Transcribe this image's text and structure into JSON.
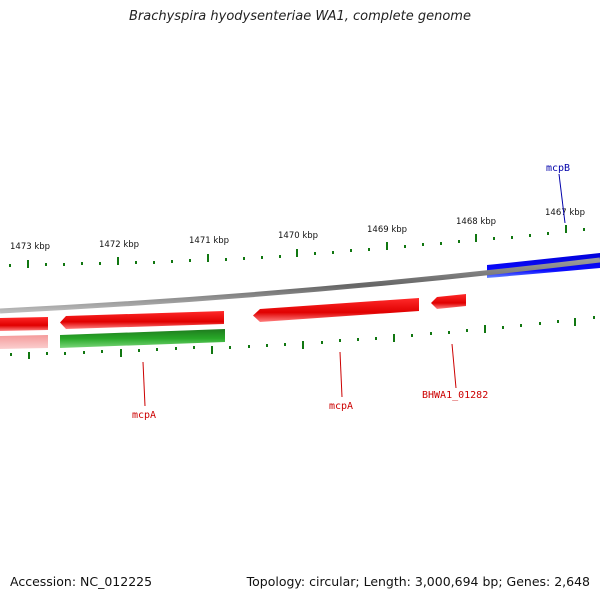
{
  "title": "Brachyspira hyodysenteriae WA1, complete genome",
  "footer": {
    "accession": "Accession: NC_012225",
    "summary": "Topology: circular; Length: 3,000,694 bp; Genes: 2,648"
  },
  "ticks": [
    "1473 kbp",
    "1472 kbp",
    "1471 kbp",
    "1470 kbp",
    "1469 kbp",
    "1468 kbp",
    "1467 kbp"
  ],
  "gene_labels": {
    "mcpB": "mcpB",
    "mcpA_1": "mcpA",
    "mcpA_2": "mcpA",
    "bhwa": "BHWA1_01282"
  },
  "colors": {
    "forward_gene": "#e00000",
    "forward_gene_faded": "#f08080",
    "reverse_gene": "#1a9a1a",
    "blue_gene": "#0000dd",
    "backbone": "#808080",
    "tick": "#117711",
    "label_red": "#cc0000",
    "label_blue": "#0000aa"
  }
}
